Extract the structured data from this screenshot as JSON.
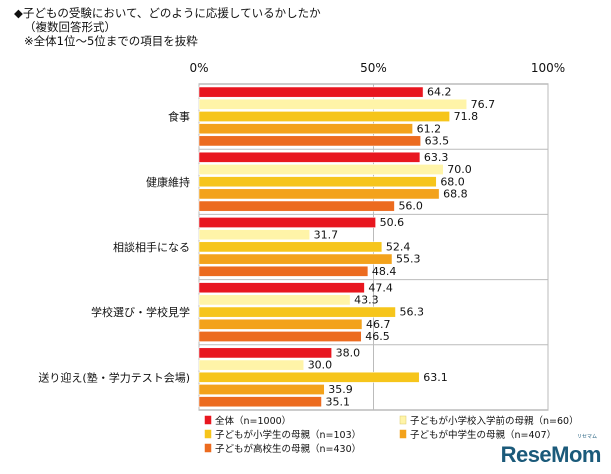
{
  "title_lines": [
    "◆子どもの受験において、どのように応援しているかしたか",
    "（複数回答形式）",
    "※全体1位～5位までの項目を抜粋"
  ],
  "logo": {
    "text": "ReseMom",
    "small": "リセマム"
  },
  "chart_data": {
    "type": "bar",
    "orientation": "horizontal",
    "xlim": [
      0,
      100
    ],
    "x_ticks": [
      "0%",
      "50%",
      "100%"
    ],
    "grid": true,
    "legend_position": "bottom",
    "categories": [
      "食事",
      "健康維持",
      "相談相手になる",
      "学校選び・学校見学",
      "送り迎え(塾・学力テスト会場)"
    ],
    "series": [
      {
        "name": "全体（n=1000）",
        "color": "#e8161f",
        "values": [
          64.2,
          63.3,
          50.6,
          47.4,
          38.0
        ]
      },
      {
        "name": "子どもが小学校入学前の母親（n=60）",
        "color": "#fff4a8",
        "values": [
          76.7,
          70.0,
          31.7,
          43.3,
          30.0
        ]
      },
      {
        "name": "子どもが小学生の母親（n=103）",
        "color": "#f6c51b",
        "values": [
          71.8,
          68.0,
          52.4,
          56.3,
          63.1
        ]
      },
      {
        "name": "子どもが中学生の母親（n=407）",
        "color": "#f3a21b",
        "values": [
          61.2,
          68.8,
          55.3,
          46.7,
          35.9
        ]
      },
      {
        "name": "子どもが高校生の母親（n=430）",
        "color": "#ec6b1f",
        "values": [
          63.5,
          56.0,
          48.4,
          46.5,
          35.1
        ]
      }
    ],
    "value_labels": [
      [
        "64.2",
        "63.3",
        "50.6",
        "47.4",
        "38.0"
      ],
      [
        "76.7",
        "70.0",
        "31.7",
        "43.3",
        "30.0"
      ],
      [
        "71.8",
        "68.0",
        "52.4",
        "56.3",
        "63.1"
      ],
      [
        "61.2",
        "68.8",
        "55.3",
        "46.7",
        "35.9"
      ],
      [
        "63.5",
        "56.0",
        "48.4",
        "46.5",
        "35.1"
      ]
    ]
  }
}
